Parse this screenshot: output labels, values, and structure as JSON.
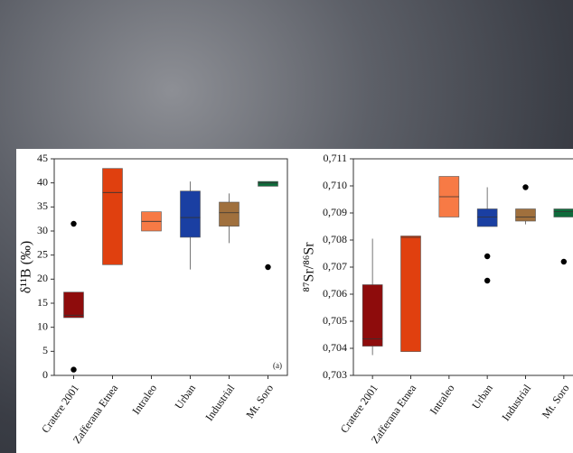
{
  "chart_data": [
    {
      "type": "box",
      "ylabel": "δ¹¹B (‰)",
      "annotation": "(a)",
      "categories": [
        "Cratere 2001",
        "Zafferana Etnea",
        "Intraleo",
        "Urban",
        "Industrial",
        "Mt. Soro"
      ],
      "ylim": [
        0,
        45
      ],
      "yticks": [
        0,
        5,
        10,
        15,
        20,
        25,
        30,
        35,
        40,
        45
      ],
      "boxes": [
        {
          "color": "#8e0c0c",
          "q1": 12,
          "median": 12.5,
          "q3": 17.3,
          "outliers": [
            31.5,
            1.2
          ]
        },
        {
          "color": "#e0400f",
          "q1": 23,
          "median": 38,
          "q3": 43
        },
        {
          "color": "#f77a45",
          "q1": 30,
          "median": 32,
          "q3": 34
        },
        {
          "color": "#1a3fa2",
          "q1": 28.7,
          "median": 32.8,
          "q3": 38.3,
          "whisker_low": 22,
          "whisker_high": 40.3
        },
        {
          "color": "#a0703d",
          "q1": 31,
          "median": 33.8,
          "q3": 36,
          "whisker_low": 27.5,
          "whisker_high": 37.8
        },
        {
          "color": "#0e6b3b",
          "q1": 39.3,
          "median": 40,
          "q3": 40.3,
          "outliers": [
            22.5
          ]
        }
      ]
    },
    {
      "type": "box",
      "ylabel": "⁸⁷Sr/⁸⁶Sr",
      "categories": [
        "Cratere 2001",
        "Zafferana Etnea",
        "Intraleo",
        "Urban",
        "Industrial",
        "Mt. Soro"
      ],
      "ylim": [
        0.703,
        0.711
      ],
      "yticks": [
        {
          "value": 0.703,
          "label": "0,703"
        },
        {
          "value": 0.704,
          "label": "0,704"
        },
        {
          "value": 0.705,
          "label": "0,705"
        },
        {
          "value": 0.706,
          "label": "0,706"
        },
        {
          "value": 0.707,
          "label": "0,707"
        },
        {
          "value": 0.708,
          "label": "0,708"
        },
        {
          "value": 0.709,
          "label": "0,709"
        },
        {
          "value": 0.71,
          "label": "0,710"
        },
        {
          "value": 0.711,
          "label": "0,711"
        }
      ],
      "boxes": [
        {
          "color": "#8e0c0c",
          "q1": 0.70408,
          "median": 0.70435,
          "q3": 0.70635,
          "whisker_low": 0.70375,
          "whisker_high": 0.70805
        },
        {
          "color": "#e0400f",
          "q1": 0.70388,
          "median": 0.7081,
          "q3": 0.70815
        },
        {
          "color": "#f77a45",
          "q1": 0.70885,
          "median": 0.7096,
          "q3": 0.71035
        },
        {
          "color": "#1a3fa2",
          "q1": 0.7085,
          "median": 0.70885,
          "q3": 0.70915,
          "whisker_high": 0.70995,
          "outliers": [
            0.7074,
            0.7065
          ]
        },
        {
          "color": "#a0703d",
          "q1": 0.7087,
          "median": 0.70885,
          "q3": 0.70915,
          "whisker_low": 0.70858,
          "outliers": [
            0.70995
          ]
        },
        {
          "color": "#0e6b3b",
          "q1": 0.70885,
          "median": 0.70905,
          "q3": 0.70915,
          "outliers": [
            0.7072
          ]
        }
      ]
    }
  ]
}
